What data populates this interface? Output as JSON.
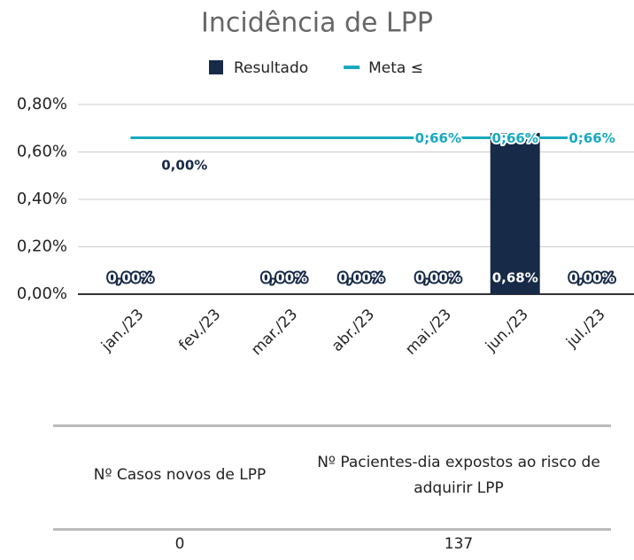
{
  "chart_data": {
    "type": "bar",
    "title": "Incidência de LPP",
    "categories": [
      "jan./23",
      "fev./23",
      "mar./23",
      "abr./23",
      "mai./23",
      "jun./23",
      "jul./23"
    ],
    "series": [
      {
        "name": "Resultado",
        "type": "bar",
        "color": "#172a47",
        "values": [
          0,
          0,
          0,
          0,
          0,
          0.68,
          0
        ],
        "value_labels": [
          "0,00%",
          "0,00%",
          "0,00%",
          "0,00%",
          "0,00%",
          "0,68%",
          "0,00%"
        ]
      },
      {
        "name": "Meta ≤",
        "type": "line",
        "color": "#17a9bf",
        "values": [
          0.66,
          0.66,
          0.66,
          0.66,
          0.66,
          0.66,
          0.66
        ],
        "value_labels": [
          null,
          null,
          null,
          null,
          "0;66%",
          "0;66%",
          "0;66%"
        ]
      }
    ],
    "ylim": [
      0,
      0.8
    ],
    "yticks": [
      {
        "value": 0,
        "label": "0,00%"
      },
      {
        "value": 0.2,
        "label": "0,20%"
      },
      {
        "value": 0.4,
        "label": "0,40%"
      },
      {
        "value": 0.6,
        "label": "0,60%"
      },
      {
        "value": 0.8,
        "label": "0,80%"
      }
    ],
    "grid": true,
    "legend": "top"
  },
  "table": {
    "header": [
      "Nº Casos novos de LPP",
      "Nº Pacientes-dia expostos ao risco de adquirir LPP"
    ],
    "rows": [
      [
        0,
        137
      ]
    ]
  }
}
